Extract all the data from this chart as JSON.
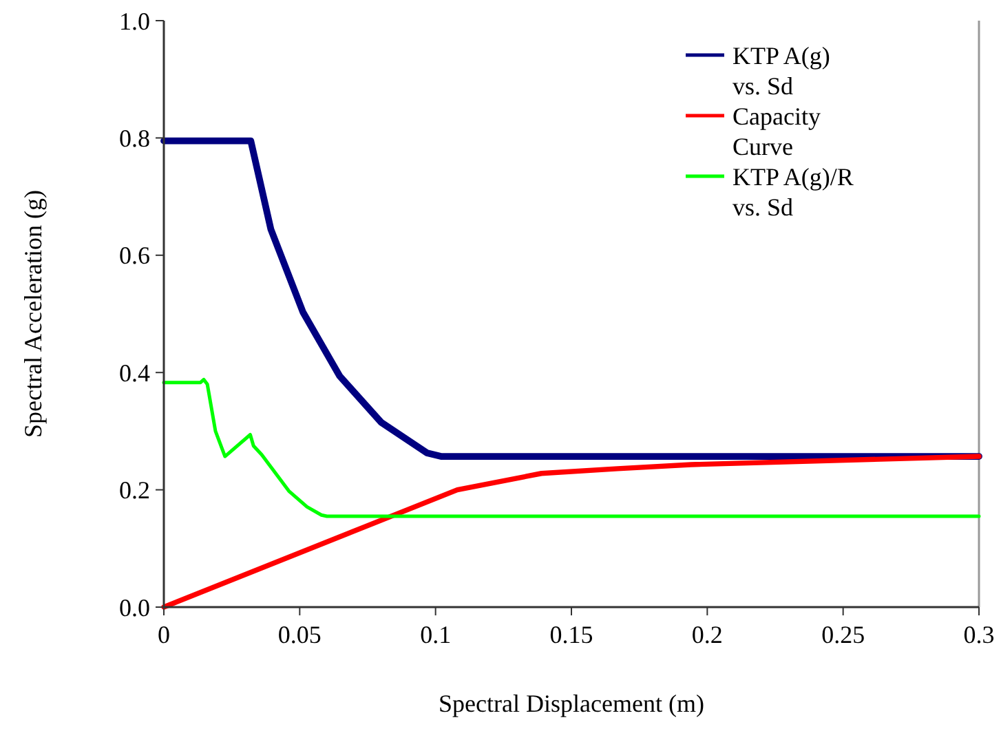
{
  "chart_data": {
    "type": "line",
    "xlabel": "Spectral Displacement (m)",
    "ylabel": "Spectral Acceleration (g)",
    "xlim": [
      0,
      0.3
    ],
    "ylim": [
      0,
      1.0
    ],
    "xticks": [
      0,
      0.05,
      0.1,
      0.15,
      0.2,
      0.25,
      0.3
    ],
    "yticks": [
      {
        "value": 0,
        "label": "0.0"
      },
      {
        "value": 0.2,
        "label": "0.2"
      },
      {
        "value": 0.4,
        "label": "0.4"
      },
      {
        "value": 0.6,
        "label": "0.6"
      },
      {
        "value": 0.8,
        "label": "0.8"
      },
      {
        "value": 1.0,
        "label": "1.0"
      }
    ],
    "grid": false,
    "legend": "top right",
    "marker": "none",
    "line_style": "solid",
    "series": [
      {
        "name": "KTP A(g) vs. Sd",
        "color": "#000080",
        "x": [
          0,
          0.032,
          0.0394,
          0.0512,
          0.0647,
          0.08,
          0.0968,
          0.102,
          0.3
        ],
        "values": [
          0.795,
          0.795,
          0.644,
          0.503,
          0.394,
          0.315,
          0.263,
          0.257,
          0.257
        ]
      },
      {
        "name": "Capacity Curve",
        "color": "#ff0000",
        "x": [
          0,
          0.108,
          0.139,
          0.167,
          0.194,
          0.3
        ],
        "values": [
          0,
          0.2,
          0.228,
          0.236,
          0.243,
          0.257
        ]
      },
      {
        "name": "KTP A(g)/R vs. Sd",
        "color": "#00ff00",
        "x": [
          0,
          0.0135,
          0.0147,
          0.016,
          0.019,
          0.0225,
          0.0318,
          0.033,
          0.036,
          0.046,
          0.0527,
          0.058,
          0.06,
          0.3
        ],
        "values": [
          0.383,
          0.383,
          0.388,
          0.38,
          0.3,
          0.257,
          0.294,
          0.275,
          0.26,
          0.198,
          0.171,
          0.157,
          0.155,
          0.155
        ]
      }
    ]
  }
}
